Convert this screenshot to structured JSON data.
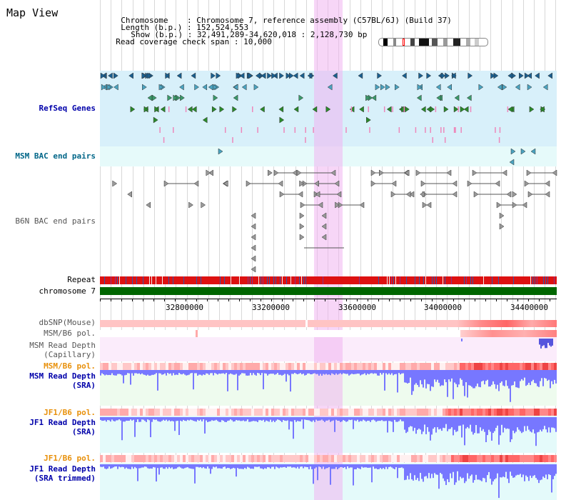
{
  "title": "Map View",
  "header": {
    "chromosome_key": "Chromosome",
    "chromosome_val": "Chromosome 7, reference assembly (C57BL/6J) (Build 37)",
    "length_key": "Length (b.p.)",
    "length_val": "152,524,553",
    "show_key": "Show (b.p.)",
    "show_val": "32,491,289-34,620,018 : 2,128,730 bp",
    "coverage_key": "Read coverage check span",
    "coverage_val": "10,000"
  },
  "tracks": {
    "refseq": "RefSeq Genes",
    "msm_bac": "MSM BAC end pairs",
    "b6n_bac": "B6N BAC end pairs",
    "repeat": "Repeat",
    "chromosome": "chromosome 7",
    "dbsnp": "dbSNP(Mouse)",
    "msm_b6_pol_1": "MSM/B6 pol.",
    "msm_depth_cap_1": "MSM Read Depth",
    "msm_depth_cap_2": "(Capillary)",
    "msm_b6_pol_2": "MSM/B6 pol.",
    "msm_depth_sra_1": "MSM Read Depth",
    "msm_depth_sra_2": "(SRA)",
    "jf1_b6_pol_1": "JF1/B6 pol.",
    "jf1_depth_sra_1": "JF1 Read Depth",
    "jf1_depth_sra_2": "(SRA)",
    "jf1_b6_pol_2": "JF1/B6 pol.",
    "jf1_depth_trim_1": "JF1 Read Depth",
    "jf1_depth_trim_2": "(SRA trimmed)"
  },
  "axis": {
    "ticks": [
      "32800000",
      "33200000",
      "33600000",
      "34000000",
      "34400000"
    ]
  },
  "colors": {
    "refseq_bg": "#d8f0fa",
    "bac_bg": "#e6fafa",
    "highlight": "#f0c8f0",
    "repeat_red": "#dd1111",
    "chrom_green": "#006600",
    "depth_blue": "#7777ff",
    "pol_pink": "#ffbbbb"
  }
}
